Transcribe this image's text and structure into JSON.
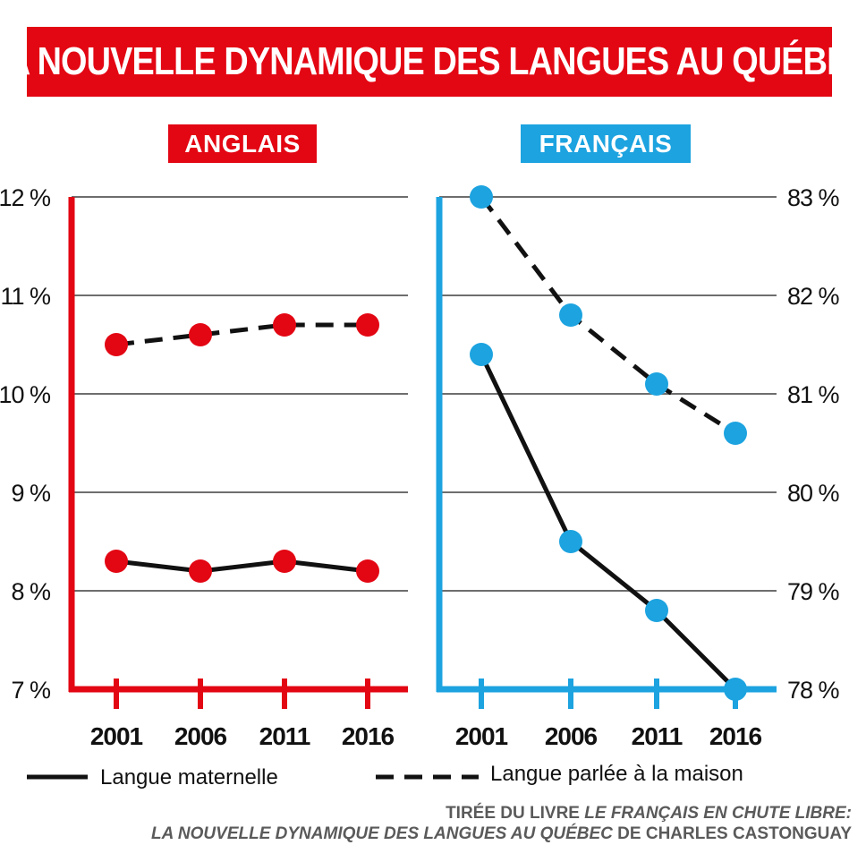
{
  "title": "LA NOUVELLE DYNAMIQUE DES LANGUES AU QUÉBEC",
  "colors": {
    "red": "#e30613",
    "blue": "#1ca3e0",
    "grid": "#6e6e6e",
    "line": "#111111"
  },
  "legend": {
    "solid": "Langue maternelle",
    "dashed": "Langue parlée à la maison"
  },
  "source": {
    "line1_prefix": "TIRÉE DU LIVRE ",
    "line1_italic": "LE FRANÇAIS EN CHUTE LIBRE:",
    "line2_italic": "LA NOUVELLE DYNAMIQUE DES LANGUES AU QUÉBEC",
    "line2_suffix": " DE CHARLES CASTONGUAY"
  },
  "chart_data": [
    {
      "type": "line",
      "title": "ANGLAIS",
      "x": [
        "2001",
        "2006",
        "2011",
        "2016"
      ],
      "ylim": [
        7,
        12
      ],
      "yticks": [
        "7 %",
        "8 %",
        "9 %",
        "10 %",
        "11 %",
        "12 %"
      ],
      "series": [
        {
          "name": "Langue maternelle",
          "style": "solid",
          "values": [
            8.3,
            8.2,
            8.3,
            8.2
          ]
        },
        {
          "name": "Langue parlée à la maison",
          "style": "dashed",
          "values": [
            10.5,
            10.6,
            10.7,
            10.7
          ]
        }
      ]
    },
    {
      "type": "line",
      "title": "FRANÇAIS",
      "x": [
        "2001",
        "2006",
        "2011",
        "2016"
      ],
      "ylim": [
        78,
        83
      ],
      "yticks": [
        "78 %",
        "79 %",
        "80 %",
        "81 %",
        "82 %",
        "83 %"
      ],
      "series": [
        {
          "name": "Langue maternelle",
          "style": "solid",
          "values": [
            81.4,
            79.5,
            78.8,
            78.0
          ]
        },
        {
          "name": "Langue parlée à la maison",
          "style": "dashed",
          "values": [
            83.0,
            81.8,
            81.1,
            80.6
          ]
        }
      ]
    }
  ]
}
